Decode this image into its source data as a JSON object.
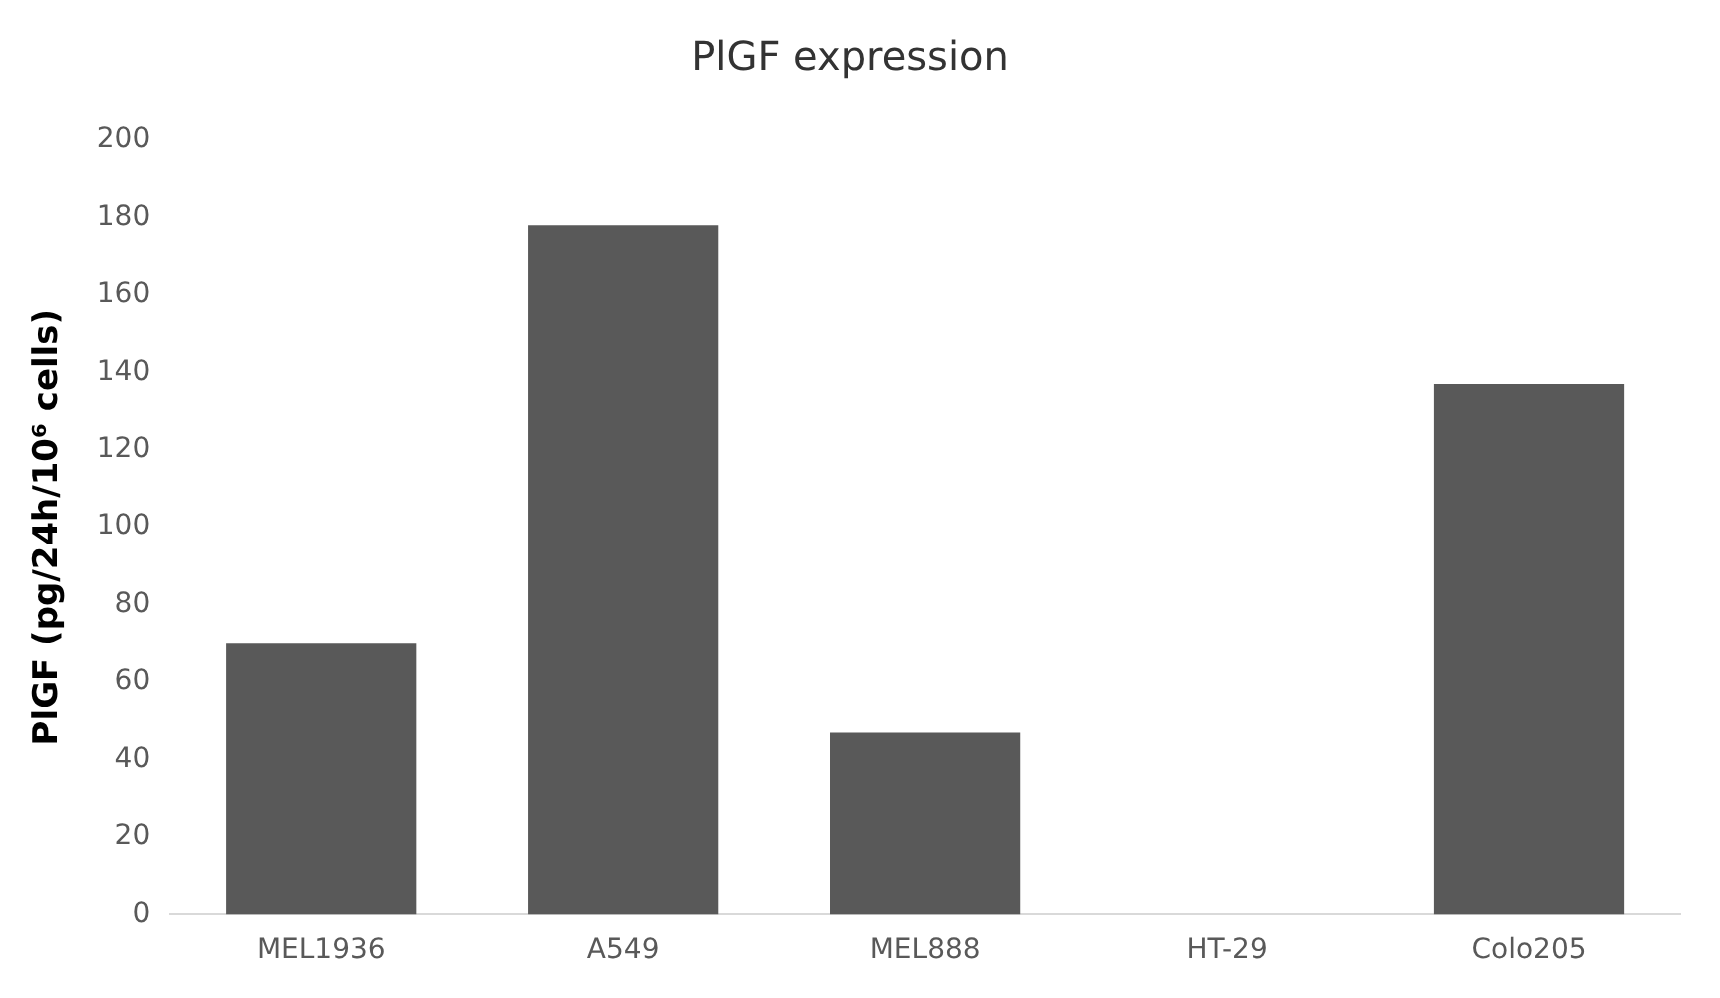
{
  "chart_data": {
    "type": "bar",
    "title": "PlGF expression",
    "ylabel": "PlGF (pg/24h/10⁶ cells)",
    "categories": [
      "MEL1936",
      "A549",
      "MEL888",
      "HT-29",
      "Colo205"
    ],
    "values": [
      70,
      178,
      47,
      0,
      137
    ],
    "color": "#595959",
    "ylim": [
      0,
      200
    ],
    "yticks": [
      0,
      20,
      40,
      60,
      80,
      100,
      120,
      140,
      160,
      180,
      200
    ],
    "grid": false,
    "legend": false
  }
}
